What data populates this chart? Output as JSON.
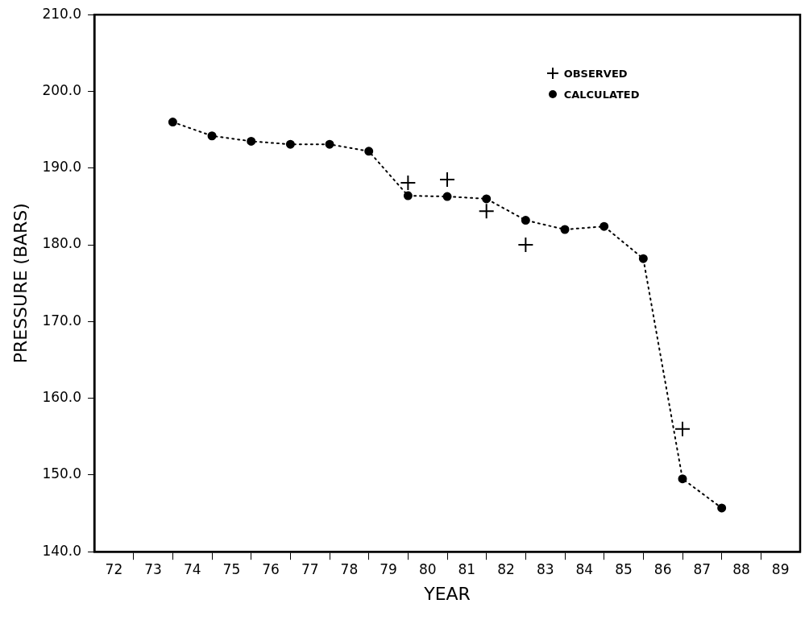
{
  "chart_data": {
    "type": "line",
    "xlabel": "YEAR",
    "ylabel": "PRESSURE (BARS)",
    "xlim": [
      72,
      90
    ],
    "xticks": [
      {
        "value": 72.5,
        "label": "72"
      },
      {
        "value": 73,
        "label": null
      },
      {
        "value": 73.5,
        "label": "73"
      },
      {
        "value": 74,
        "label": null
      },
      {
        "value": 74.5,
        "label": "74"
      },
      {
        "value": 75,
        "label": null
      },
      {
        "value": 75.5,
        "label": "75"
      },
      {
        "value": 76,
        "label": null
      },
      {
        "value": 76.5,
        "label": "76"
      },
      {
        "value": 77,
        "label": null
      },
      {
        "value": 77.5,
        "label": "77"
      },
      {
        "value": 78,
        "label": null
      },
      {
        "value": 78.5,
        "label": "78"
      },
      {
        "value": 79,
        "label": null
      },
      {
        "value": 79.5,
        "label": "79"
      },
      {
        "value": 80,
        "label": null
      },
      {
        "value": 80.5,
        "label": "80"
      },
      {
        "value": 81,
        "label": null
      },
      {
        "value": 81.5,
        "label": "81"
      },
      {
        "value": 82,
        "label": null
      },
      {
        "value": 82.5,
        "label": "82"
      },
      {
        "value": 83,
        "label": null
      },
      {
        "value": 83.5,
        "label": "83"
      },
      {
        "value": 84,
        "label": null
      },
      {
        "value": 84.5,
        "label": "84"
      },
      {
        "value": 85,
        "label": null
      },
      {
        "value": 85.5,
        "label": "85"
      },
      {
        "value": 86,
        "label": null
      },
      {
        "value": 86.5,
        "label": "86"
      },
      {
        "value": 87,
        "label": null
      },
      {
        "value": 87.5,
        "label": "87"
      },
      {
        "value": 88,
        "label": null
      },
      {
        "value": 88.5,
        "label": "88"
      },
      {
        "value": 89,
        "label": null
      },
      {
        "value": 89.5,
        "label": "89"
      }
    ],
    "ylim": [
      140,
      210
    ],
    "yticks": [
      {
        "value": 140,
        "label": "140.0"
      },
      {
        "value": 150,
        "label": "150.0"
      },
      {
        "value": 160,
        "label": "160.0"
      },
      {
        "value": 170,
        "label": "170.0"
      },
      {
        "value": 180,
        "label": "180.0"
      },
      {
        "value": 190,
        "label": "190.0"
      },
      {
        "value": 200,
        "label": "200.0"
      },
      {
        "value": 210,
        "label": "210.0"
      }
    ],
    "grid": false,
    "legend": "top right",
    "series": [
      {
        "name": "OBSERVED",
        "type": "scatter",
        "marker": "cross",
        "color": "#000000",
        "x": [
          80,
          81,
          82,
          83,
          87
        ],
        "values": [
          188.1,
          188.5,
          184.4,
          180.0,
          156.0
        ]
      },
      {
        "name": "CALCULATED",
        "type": "line",
        "marker": "circle",
        "line_style": "dotted",
        "color": "#000000",
        "x": [
          74,
          75,
          76,
          77,
          78,
          79,
          80,
          81,
          82,
          83,
          84,
          85,
          86,
          87,
          88
        ],
        "values": [
          196.0,
          194.2,
          193.5,
          193.1,
          193.1,
          192.2,
          186.4,
          186.3,
          186.0,
          183.2,
          182.0,
          182.4,
          178.2,
          149.5,
          145.7
        ]
      }
    ]
  }
}
